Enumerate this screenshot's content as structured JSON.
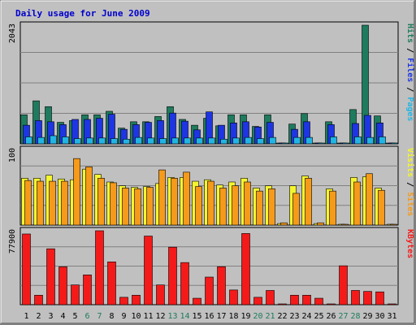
{
  "chart_data": {
    "type": "bar",
    "title": "Daily usage for June 2009",
    "categories": [
      "1",
      "2",
      "3",
      "4",
      "5",
      "6",
      "7",
      "8",
      "9",
      "10",
      "11",
      "12",
      "13",
      "14",
      "15",
      "16",
      "17",
      "18",
      "19",
      "20",
      "21",
      "22",
      "23",
      "24",
      "25",
      "26",
      "27",
      "28",
      "29",
      "30",
      "31"
    ],
    "weekend_days": [
      "6",
      "7",
      "13",
      "14",
      "20",
      "21",
      "27",
      "28"
    ],
    "panels": [
      {
        "name": "hits-files-pages",
        "ymax": 2043,
        "ymax_label": "2043",
        "side_label": [
          "Pages",
          "Files",
          "Hits"
        ],
        "series": [
          {
            "name": "Hits",
            "color": "#1e7b5e",
            "values": [
              500,
              740,
              640,
              370,
              400,
              500,
              500,
              560,
              270,
              380,
              380,
              470,
              640,
              420,
              320,
              440,
              310,
              500,
              500,
              300,
              500,
              0,
              340,
              520,
              0,
              380,
              0,
              590,
              2043,
              480,
              0
            ]
          },
          {
            "name": "Files",
            "color": "#1e35e3",
            "values": [
              320,
              400,
              380,
              330,
              420,
              420,
              440,
              510,
              250,
              330,
              370,
              400,
              530,
              390,
              240,
              550,
              320,
              360,
              380,
              290,
              370,
              0,
              250,
              380,
              0,
              330,
              0,
              350,
              490,
              360,
              0
            ]
          },
          {
            "name": "Pages",
            "color": "#22b5e3",
            "values": [
              120,
              110,
              140,
              120,
              90,
              100,
              100,
              90,
              80,
              110,
              100,
              90,
              100,
              100,
              100,
              100,
              80,
              100,
              110,
              90,
              110,
              0,
              110,
              110,
              0,
              120,
              0,
              120,
              110,
              120,
              0
            ]
          }
        ]
      },
      {
        "name": "visits-sites",
        "ymax": 100,
        "ymax_label": "100",
        "side_label": [
          "Sites",
          "Visits"
        ],
        "series": [
          {
            "name": "Visits",
            "color": "#f5f52f",
            "values": [
              62,
              62,
              66,
              61,
              60,
              74,
              67,
              57,
              52,
              50,
              51,
              55,
              63,
              63,
              58,
              60,
              53,
              57,
              62,
              49,
              52,
              2,
              52,
              65,
              2,
              48,
              0,
              63,
              64,
              49,
              0
            ]
          },
          {
            "name": "Sites",
            "color": "#f59a1a",
            "values": [
              59,
              58,
              58,
              58,
              88,
              77,
              62,
              56,
              49,
              48,
              50,
              73,
              62,
              70,
              51,
              58,
              49,
              52,
              57,
              45,
              48,
              3,
              42,
              62,
              3,
              45,
              0,
              57,
              68,
              46,
              0
            ]
          }
        ]
      },
      {
        "name": "kbytes",
        "ymax": 77900,
        "ymax_label": "77900",
        "side_label": [
          "KBytes"
        ],
        "series": [
          {
            "name": "KBytes",
            "color": "#f51a1a",
            "values": [
              74500,
              10000,
              58900,
              39900,
              20800,
              31400,
              77900,
              45100,
              7800,
              10000,
              72300,
              20800,
              60600,
              44400,
              6800,
              29100,
              40000,
              15500,
              75000,
              7800,
              15000,
              0,
              10000,
              10000,
              6800,
              0,
              41000,
              15000,
              14000,
              13500,
              0
            ]
          }
        ]
      }
    ]
  }
}
